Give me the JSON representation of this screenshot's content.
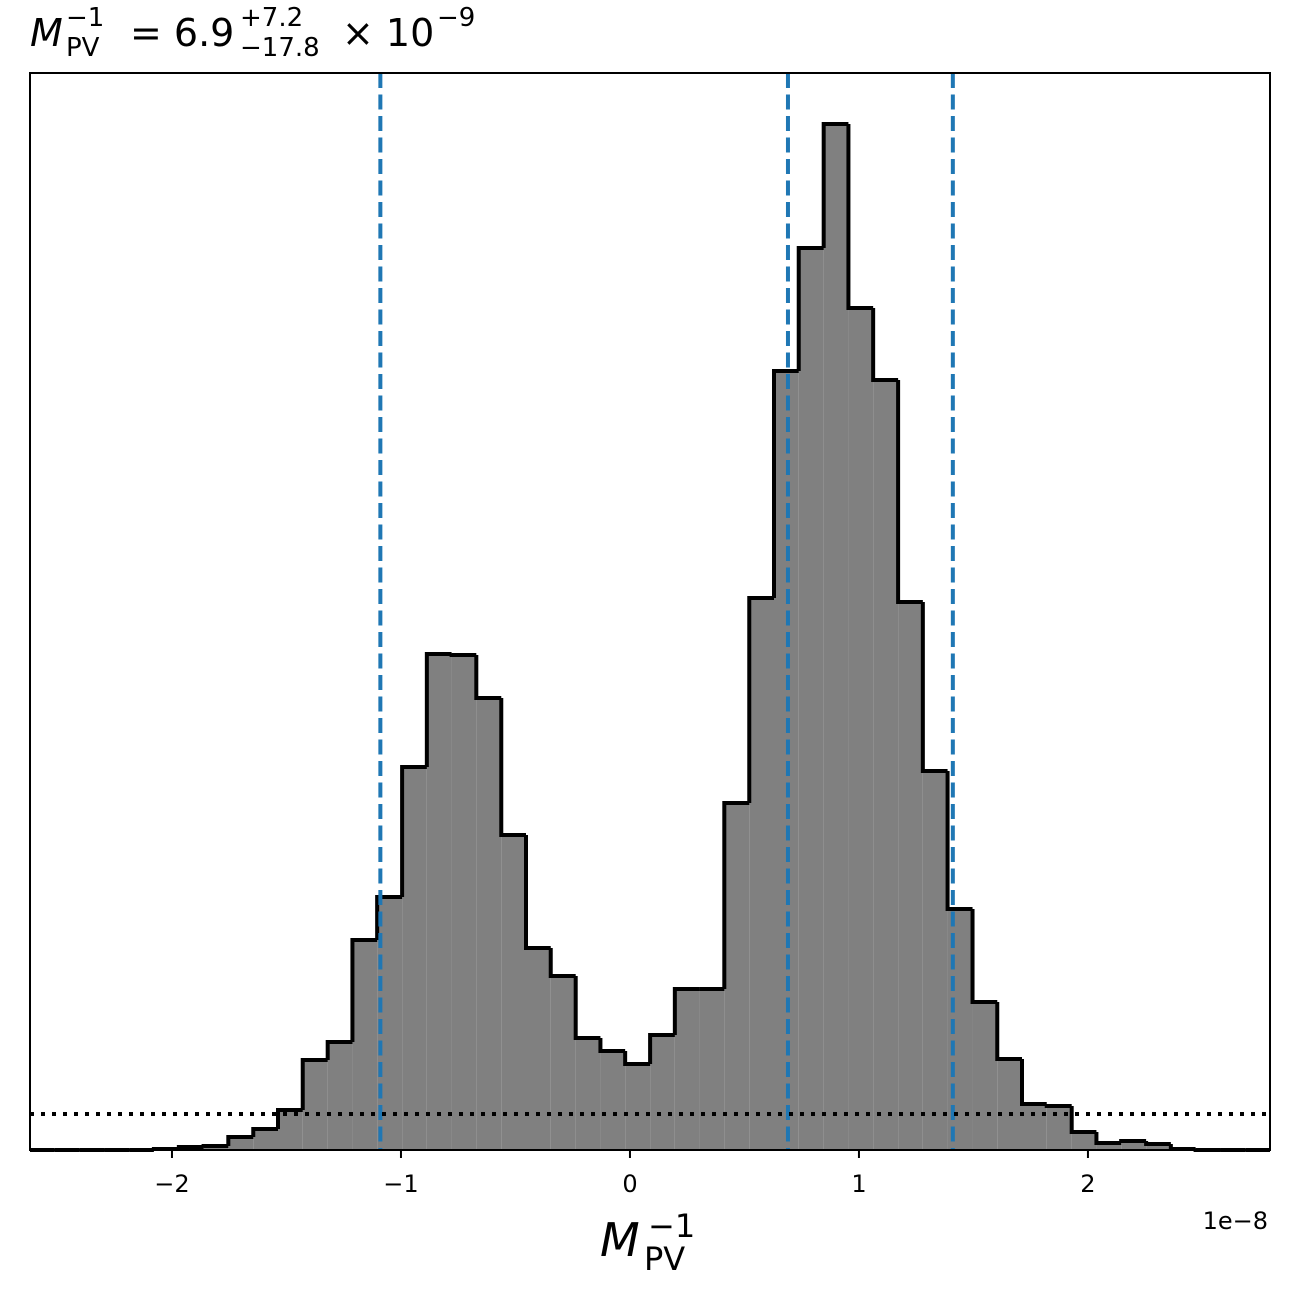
{
  "chart_data": {
    "type": "histogram",
    "title": {
      "symbol": "M",
      "sup": "−1",
      "sub": "PV",
      "value": "= 6.9",
      "upper": "+7.2",
      "lower": "−17.8",
      "times": "× 10",
      "exponent": "−9"
    },
    "xlabel": {
      "symbol": "M",
      "sup": "−1",
      "sub": "PV"
    },
    "x_offset_label": "1e−8",
    "bins": [
      -2.62,
      -2.512,
      -2.403,
      -2.295,
      -2.187,
      -2.079,
      -1.97,
      -1.862,
      -1.754,
      -1.645,
      -1.537,
      -1.429,
      -1.32,
      -1.212,
      -1.104,
      -0.995,
      -0.887,
      -0.779,
      -0.671,
      -0.562,
      -0.454,
      -0.346,
      -0.237,
      -0.129,
      -0.021,
      0.088,
      0.196,
      0.304,
      0.412,
      0.521,
      0.629,
      0.737,
      0.846,
      0.954,
      1.062,
      1.171,
      1.279,
      1.387,
      1.496,
      1.604,
      1.712,
      1.82,
      1.929,
      2.037,
      2.145,
      2.254,
      2.362,
      2.47,
      2.579,
      2.687,
      2.795
    ],
    "counts": [
      0,
      0,
      0,
      0,
      0,
      1,
      3,
      4,
      13,
      21,
      40,
      90,
      108,
      210,
      253,
      383,
      496,
      495,
      452,
      315,
      202,
      174,
      112,
      99,
      86,
      115,
      161,
      161,
      347,
      552,
      779,
      902,
      1026,
      842,
      770,
      548,
      379,
      241,
      148,
      91,
      46,
      44,
      18,
      7,
      9,
      6,
      1,
      0,
      0,
      0
    ],
    "color": "#808080",
    "edgecolor": "#000000",
    "xlim": [
      -2.62,
      2.795
    ],
    "ylim": [
      0,
      1077
    ],
    "xticks": [
      {
        "value": -2,
        "label": "−2"
      },
      {
        "value": -1,
        "label": "−1"
      },
      0,
      1,
      2
    ],
    "vlines": [
      {
        "value": -1.09,
        "color": "#1f77b4"
      },
      {
        "value": 0.69,
        "color": "#1f77b4"
      },
      {
        "value": 1.41,
        "color": "#1f77b4"
      }
    ],
    "hline": {
      "value": 36,
      "color": "#000000"
    }
  }
}
